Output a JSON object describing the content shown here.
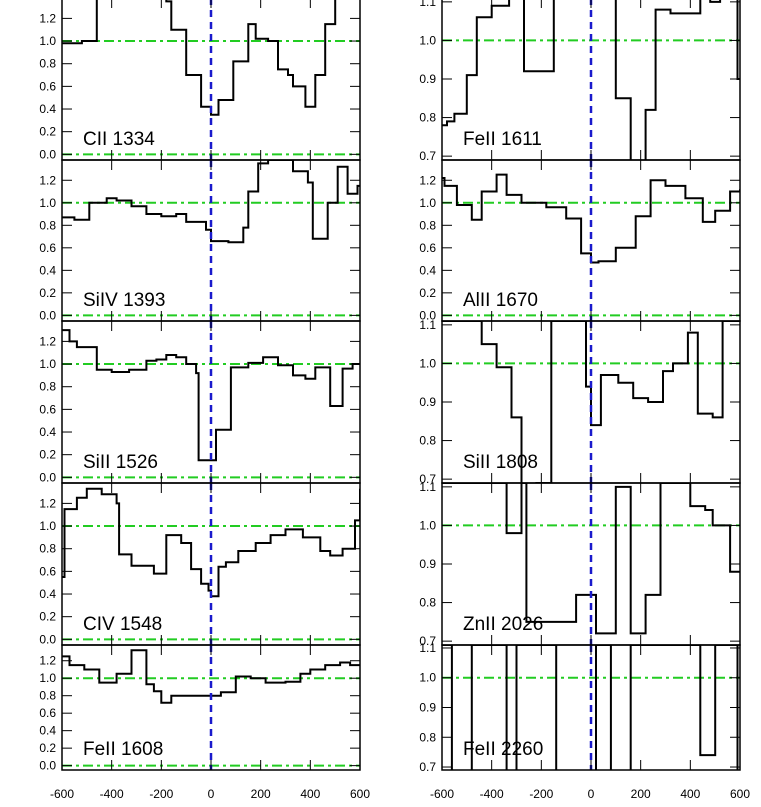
{
  "chart_data": {
    "type": "line",
    "style": {
      "line_color": "#000000",
      "continuum_color": "#22cc22",
      "zero_velocity_color": "#1a1acc",
      "continuum_style": "dash-dot",
      "zero_velocity_style": "dashed",
      "step_plot": true
    },
    "columns": [
      {
        "xlabel": "",
        "xlim": [
          -600,
          600
        ],
        "xticks": [
          "-600",
          "-400",
          "-200",
          "0",
          "200",
          "400",
          "600"
        ],
        "x_tick_values": [
          -600,
          -400,
          -200,
          0,
          200,
          400,
          600
        ],
        "panels": [
          {
            "label": "CII 1334",
            "ylim": [
              -0.05,
              1.38
            ],
            "yticks": [
              "0.0",
              "0.2",
              "0.4",
              "0.6",
              "0.8",
              "1.0",
              "1.2"
            ],
            "ytick_values": [
              0.0,
              0.2,
              0.4,
              0.6,
              0.8,
              1.0,
              1.2
            ],
            "continuum_levels": [
              0.0,
              1.0
            ],
            "zero_velocity": 0,
            "series": [
              {
                "x": [
                  -600,
                  -520,
                  -460,
                  -400,
                  -340,
                  -280,
                  -230,
                  -180,
                  -160,
                  -100,
                  -40,
                  0,
                  30,
                  90,
                  150,
                  180,
                  230,
                  270,
                  310,
                  330,
                  380,
                  420,
                  460,
                  500,
                  560
                ],
                "y": [
                  0.98,
                  1.0,
                  1.38,
                  1.38,
                  1.38,
                  1.38,
                  1.38,
                  1.35,
                  1.1,
                  0.7,
                  0.42,
                  0.35,
                  0.48,
                  0.82,
                  1.15,
                  1.02,
                  1.0,
                  0.75,
                  0.7,
                  0.6,
                  0.42,
                  0.7,
                  1.15,
                  1.38,
                  1.38
                ]
              }
            ]
          },
          {
            "label": "SiIV 1393",
            "ylim": [
              -0.05,
              1.38
            ],
            "yticks": [
              "0.0",
              "0.2",
              "0.4",
              "0.6",
              "0.8",
              "1.0",
              "1.2"
            ],
            "ytick_values": [
              0.0,
              0.2,
              0.4,
              0.6,
              0.8,
              1.0,
              1.2
            ],
            "continuum_levels": [
              0.0,
              1.0
            ],
            "zero_velocity": 0,
            "series": [
              {
                "x": [
                  -600,
                  -550,
                  -490,
                  -420,
                  -380,
                  -320,
                  -260,
                  -200,
                  -140,
                  -100,
                  -20,
                  0,
                  70,
                  130,
                  150,
                  190,
                  230,
                  260,
                  330,
                  390,
                  410,
                  470,
                  510,
                  550,
                  590
                ],
                "y": [
                  0.87,
                  0.85,
                  1.0,
                  1.04,
                  1.02,
                  0.97,
                  0.9,
                  0.88,
                  0.9,
                  0.83,
                  0.76,
                  0.66,
                  0.65,
                  0.78,
                  1.1,
                  1.35,
                  1.38,
                  1.38,
                  1.28,
                  1.18,
                  0.68,
                  1.0,
                  1.32,
                  1.08,
                  1.15
                ]
              }
            ]
          },
          {
            "label": "SiII 1526",
            "ylim": [
              -0.05,
              1.38
            ],
            "yticks": [
              "0.0",
              "0.2",
              "0.4",
              "0.6",
              "0.8",
              "1.0",
              "1.2"
            ],
            "ytick_values": [
              0.0,
              0.2,
              0.4,
              0.6,
              0.8,
              1.0,
              1.2
            ],
            "continuum_levels": [
              0.0,
              1.0
            ],
            "zero_velocity": 0,
            "series": [
              {
                "x": [
                  -600,
                  -570,
                  -540,
                  -460,
                  -400,
                  -330,
                  -260,
                  -220,
                  -180,
                  -140,
                  -100,
                  -60,
                  -50,
                  0,
                  20,
                  80,
                  150,
                  210,
                  270,
                  330,
                  380,
                  420,
                  480,
                  530,
                  570
                ],
                "y": [
                  1.3,
                  1.2,
                  1.15,
                  0.95,
                  0.93,
                  0.95,
                  1.03,
                  1.04,
                  1.08,
                  1.06,
                  1.0,
                  0.92,
                  0.15,
                  0.15,
                  0.42,
                  0.97,
                  1.01,
                  1.06,
                  0.99,
                  0.9,
                  0.87,
                  0.97,
                  0.63,
                  0.96,
                  1.0
                ]
              }
            ]
          },
          {
            "label": "CIV 1548",
            "ylim": [
              -0.05,
              1.38
            ],
            "yticks": [
              "0.0",
              "0.2",
              "0.4",
              "0.6",
              "0.8",
              "1.0",
              "1.2"
            ],
            "ytick_values": [
              0.0,
              0.2,
              0.4,
              0.6,
              0.8,
              1.0,
              1.2
            ],
            "continuum_levels": [
              0.0,
              1.0
            ],
            "zero_velocity": 0,
            "series": [
              {
                "x": [
                  -600,
                  -590,
                  -540,
                  -500,
                  -440,
                  -380,
                  -370,
                  -320,
                  -230,
                  -180,
                  -120,
                  -80,
                  -40,
                  -10,
                  0,
                  30,
                  60,
                  110,
                  180,
                  240,
                  300,
                  370,
                  440,
                  480,
                  530,
                  580,
                  600
                ],
                "y": [
                  0.55,
                  1.15,
                  1.25,
                  1.33,
                  1.28,
                  1.2,
                  0.75,
                  0.65,
                  0.58,
                  0.92,
                  0.85,
                  0.62,
                  0.49,
                  0.43,
                  0.38,
                  0.64,
                  0.68,
                  0.78,
                  0.85,
                  0.92,
                  0.97,
                  0.9,
                  0.78,
                  0.74,
                  0.8,
                  1.05,
                  1.33
                ]
              }
            ]
          },
          {
            "label": "FeII 1608",
            "ylim": [
              -0.05,
              1.38
            ],
            "yticks": [
              "0.0",
              "0.2",
              "0.4",
              "0.6",
              "0.8",
              "1.0",
              "1.2"
            ],
            "ytick_values": [
              0.0,
              0.2,
              0.4,
              0.6,
              0.8,
              1.0,
              1.2
            ],
            "continuum_levels": [
              0.0,
              1.0
            ],
            "zero_velocity": 0,
            "series": [
              {
                "x": [
                  -600,
                  -570,
                  -510,
                  -450,
                  -380,
                  -320,
                  -260,
                  -230,
                  -200,
                  -160,
                  -60,
                  0,
                  40,
                  100,
                  160,
                  200,
                  220,
                  300,
                  360,
                  400,
                  460,
                  520,
                  560
                ],
                "y": [
                  1.25,
                  1.15,
                  1.1,
                  0.95,
                  1.05,
                  1.32,
                  0.93,
                  0.85,
                  0.72,
                  0.8,
                  0.8,
                  0.8,
                  0.84,
                  1.02,
                  1.0,
                  1.0,
                  0.95,
                  0.96,
                  1.05,
                  1.1,
                  1.15,
                  1.18,
                  1.15
                ]
              }
            ]
          }
        ]
      },
      {
        "xlabel": "",
        "xlim": [
          -600,
          600
        ],
        "xticks": [
          "-600",
          "-400",
          "-200",
          "0",
          "200",
          "400",
          "600"
        ],
        "x_tick_values": [
          -600,
          -400,
          -200,
          0,
          200,
          400,
          600
        ],
        "panels": [
          {
            "label": "FeII 1611",
            "ylim": [
              0.69,
              1.11
            ],
            "yticks": [
              "0.7",
              "0.8",
              "0.9",
              "1.0",
              "1.1"
            ],
            "ytick_values": [
              0.7,
              0.8,
              0.9,
              1.0,
              1.1
            ],
            "continuum_levels": [
              1.0
            ],
            "zero_velocity": 0,
            "series": [
              {
                "x": [
                  -600,
                  -580,
                  -550,
                  -500,
                  -460,
                  -400,
                  -330,
                  -270,
                  -200,
                  -150,
                  -100,
                  -50,
                  0,
                  40,
                  100,
                  160,
                  180,
                  220,
                  260,
                  320,
                  380,
                  440,
                  480,
                  520,
                  570,
                  590
                ],
                "y": [
                  0.78,
                  0.79,
                  0.81,
                  0.91,
                  1.06,
                  1.09,
                  1.11,
                  0.92,
                  0.92,
                  1.11,
                  1.11,
                  1.11,
                  1.11,
                  1.11,
                  0.85,
                  0.68,
                  0.68,
                  0.82,
                  1.08,
                  1.07,
                  1.07,
                  1.11,
                  1.1,
                  1.11,
                  1.11,
                  0.9
                ]
              }
            ]
          },
          {
            "label": "AlII 1670",
            "ylim": [
              -0.05,
              1.38
            ],
            "yticks": [
              "0.0",
              "0.2",
              "0.4",
              "0.6",
              "0.8",
              "1.0",
              "1.2"
            ],
            "ytick_values": [
              0.0,
              0.2,
              0.4,
              0.6,
              0.8,
              1.0,
              1.2
            ],
            "continuum_levels": [
              0.0,
              1.0
            ],
            "zero_velocity": 0,
            "series": [
              {
                "x": [
                  -600,
                  -590,
                  -540,
                  -480,
                  -440,
                  -380,
                  -340,
                  -280,
                  -220,
                  -180,
                  -100,
                  -40,
                  0,
                  30,
                  100,
                  180,
                  240,
                  300,
                  380,
                  450,
                  500,
                  560,
                  600
                ],
                "y": [
                  1.22,
                  1.15,
                  0.98,
                  0.85,
                  1.1,
                  1.25,
                  1.07,
                  1.0,
                  1.0,
                  0.96,
                  0.86,
                  0.55,
                  0.47,
                  0.48,
                  0.6,
                  0.88,
                  1.2,
                  1.15,
                  1.04,
                  0.83,
                  0.93,
                  1.1,
                  1.12
                ]
              }
            ]
          },
          {
            "label": "SiII 1808",
            "ylim": [
              0.69,
              1.11
            ],
            "yticks": [
              "0.7",
              "0.8",
              "0.9",
              "1.0",
              "1.1"
            ],
            "ytick_values": [
              0.7,
              0.8,
              0.9,
              1.0,
              1.1
            ],
            "continuum_levels": [
              1.0
            ],
            "zero_velocity": 0,
            "series": [
              {
                "x": [
                  -600,
                  -500,
                  -440,
                  -380,
                  -320,
                  -280,
                  -220,
                  -160,
                  -100,
                  -70,
                  -20,
                  0,
                  40,
                  110,
                  170,
                  230,
                  290,
                  330,
                  390,
                  430,
                  490,
                  530
                ],
                "y": [
                  1.11,
                  1.11,
                  1.05,
                  0.99,
                  0.86,
                  0.67,
                  0.69,
                  1.11,
                  1.11,
                  1.11,
                  0.94,
                  0.84,
                  0.97,
                  0.95,
                  0.91,
                  0.9,
                  0.98,
                  1.0,
                  1.08,
                  0.87,
                  0.86,
                  1.11
                ]
              }
            ]
          },
          {
            "label": "ZnII 2026",
            "ylim": [
              0.69,
              1.11
            ],
            "yticks": [
              "0.7",
              "0.8",
              "0.9",
              "1.0",
              "1.1"
            ],
            "ytick_values": [
              0.7,
              0.8,
              0.9,
              1.0,
              1.1
            ],
            "continuum_levels": [
              1.0
            ],
            "zero_velocity": 0,
            "series": [
              {
                "x": [
                  -600,
                  -480,
                  -420,
                  -340,
                  -280,
                  -260,
                  -120,
                  -60,
                  0,
                  20,
                  100,
                  160,
                  220,
                  280,
                  340,
                  400,
                  460,
                  490,
                  560,
                  600
                ],
                "y": [
                  1.11,
                  1.11,
                  1.11,
                  0.98,
                  1.11,
                  0.75,
                  0.75,
                  0.82,
                  0.82,
                  0.72,
                  1.1,
                  0.72,
                  0.82,
                  1.11,
                  1.11,
                  1.05,
                  1.04,
                  1.0,
                  0.88,
                  0.88
                ]
              }
            ]
          },
          {
            "label": "FeII 2260",
            "ylim": [
              0.69,
              1.11
            ],
            "yticks": [
              "0.7",
              "0.8",
              "0.9",
              "1.0",
              "1.1"
            ],
            "ytick_values": [
              0.7,
              0.8,
              0.9,
              1.0,
              1.1
            ],
            "continuum_levels": [
              1.0
            ],
            "zero_velocity": 0,
            "series": [
              {
                "x": [
                  -600,
                  -560,
                  -480,
                  -420,
                  -340,
                  -300,
                  -180,
                  -140,
                  0,
                  20,
                  80,
                  160,
                  300,
                  440,
                  500,
                  560,
                  590
                ],
                "y": [
                  1.11,
                  0.68,
                  1.11,
                  1.11,
                  0.68,
                  1.11,
                  1.11,
                  0.68,
                  0.68,
                  1.11,
                  0.68,
                  1.11,
                  1.11,
                  0.74,
                  1.11,
                  1.11,
                  0.68
                ]
              }
            ]
          }
        ]
      }
    ]
  }
}
